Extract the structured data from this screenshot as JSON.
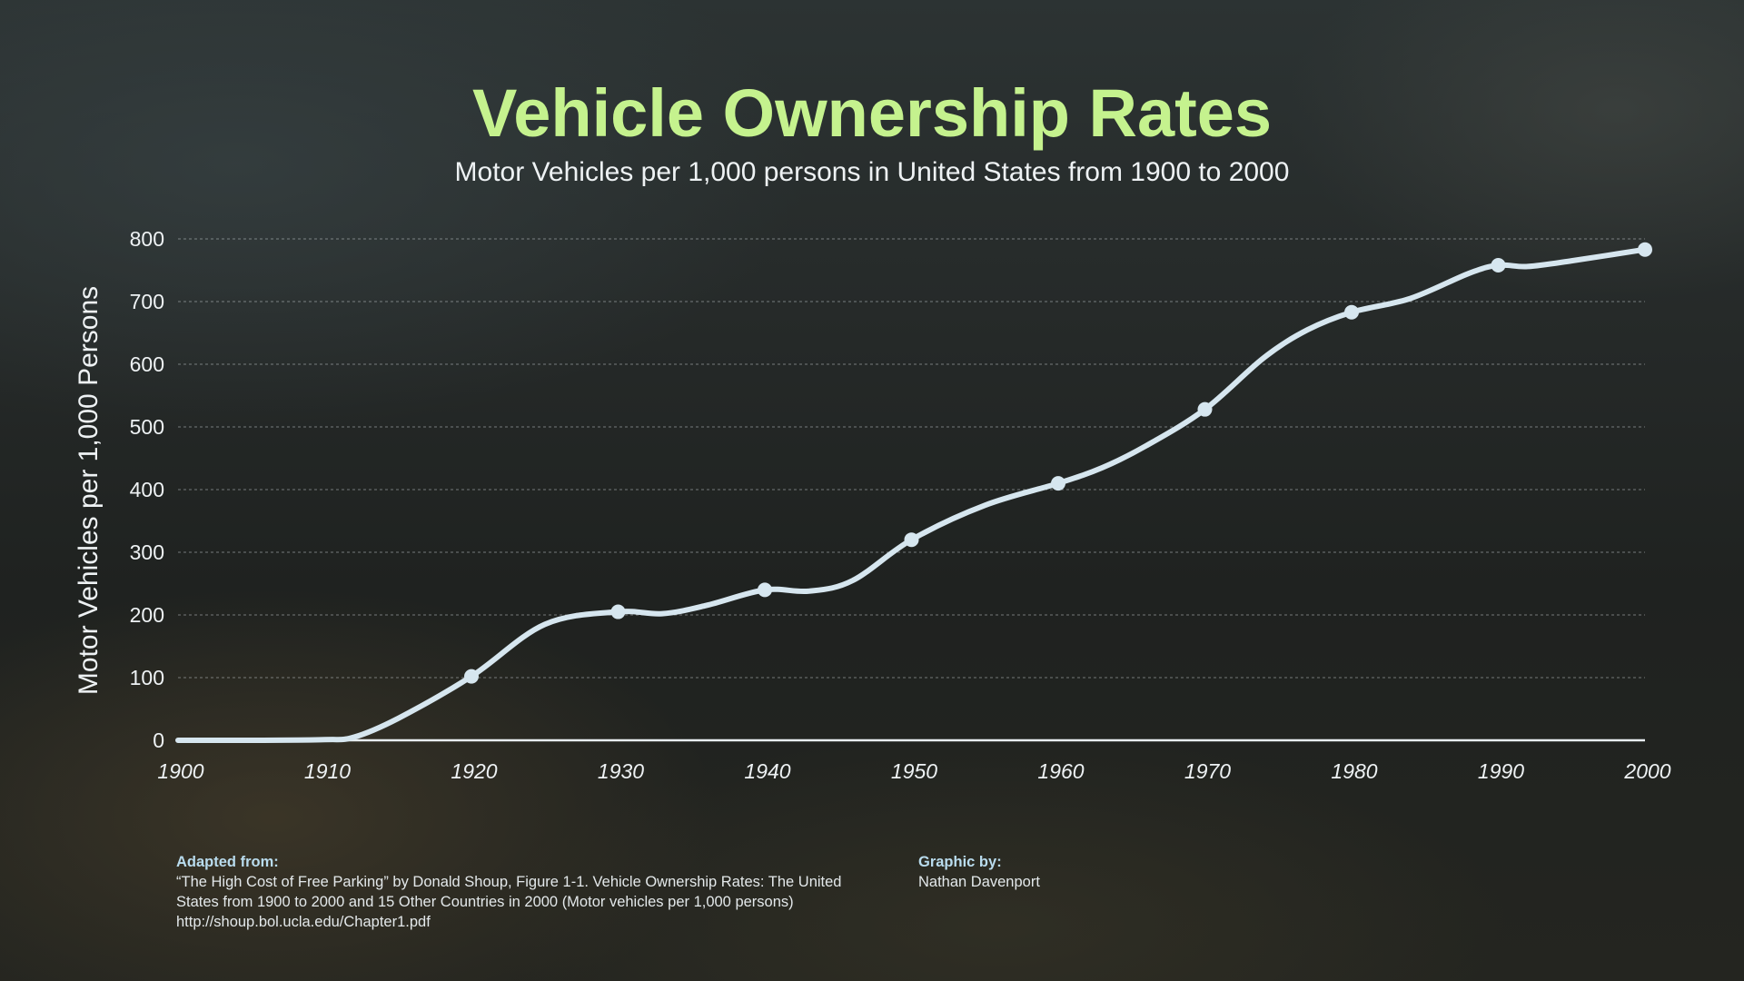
{
  "chart_data": {
    "type": "line",
    "title": "Vehicle Ownership Rates",
    "subtitle": "Motor Vehicles per 1,000 persons in United States from 1900 to 2000",
    "xlabel": "",
    "ylabel": "Motor Vehicles per 1,000 Persons",
    "xlim": [
      1900,
      2000
    ],
    "ylim": [
      0,
      800
    ],
    "x_ticks": [
      1900,
      1910,
      1920,
      1930,
      1940,
      1950,
      1960,
      1970,
      1980,
      1990,
      2000
    ],
    "y_ticks": [
      0,
      100,
      200,
      300,
      400,
      500,
      600,
      700,
      800
    ],
    "grid": "horizontal-dashed",
    "series": [
      {
        "color": "#d6e6ef",
        "x": [
          1900,
          1905,
          1910,
          1912,
          1915,
          1920,
          1925,
          1930,
          1933,
          1936,
          1940,
          1943,
          1946,
          1950,
          1955,
          1960,
          1963,
          1966,
          1970,
          1974,
          1977,
          1980,
          1984,
          1988,
          1990,
          1992,
          1995,
          2000
        ],
        "y": [
          0,
          0,
          1,
          5,
          35,
          102,
          185,
          205,
          202,
          215,
          240,
          238,
          255,
          320,
          375,
          410,
          435,
          470,
          528,
          610,
          655,
          683,
          705,
          745,
          758,
          756,
          765,
          783
        ],
        "markers": [
          {
            "x": 1920,
            "y": 102
          },
          {
            "x": 1930,
            "y": 205
          },
          {
            "x": 1940,
            "y": 240
          },
          {
            "x": 1950,
            "y": 320
          },
          {
            "x": 1960,
            "y": 410
          },
          {
            "x": 1970,
            "y": 528
          },
          {
            "x": 1980,
            "y": 683
          },
          {
            "x": 1990,
            "y": 758
          },
          {
            "x": 2000,
            "y": 783
          }
        ]
      }
    ]
  },
  "credits": {
    "source_heading": "Adapted from:",
    "source_line1": "“The High Cost of Free Parking” by Donald Shoup, Figure 1-1. Vehicle Ownership Rates: The United",
    "source_line2": "States from 1900 to 2000 and 15 Other Countries in 2000 (Motor vehicles per 1,000 persons)",
    "source_url": "http://shoup.bol.ucla.edu/Chapter1.pdf",
    "graphic_heading": "Graphic by:",
    "graphic_author": "Nathan Davenport"
  }
}
